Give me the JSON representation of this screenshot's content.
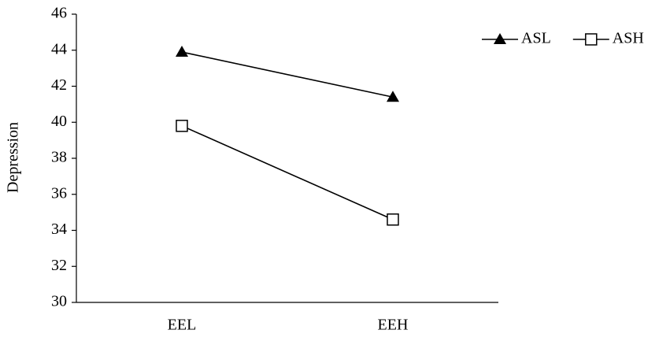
{
  "chart_data": {
    "type": "line",
    "ylabel": "Depression",
    "categories": [
      "EEL",
      "EEH"
    ],
    "series": [
      {
        "name": "ASL",
        "color": "#000000",
        "marker": "triangle",
        "values": [
          43.9,
          41.4
        ]
      },
      {
        "name": "ASH",
        "color": "#000000",
        "marker": "square",
        "values": [
          39.8,
          34.6
        ]
      }
    ],
    "ylim": [
      30,
      46
    ],
    "yticks": [
      30,
      32,
      34,
      36,
      38,
      40,
      42,
      44,
      46
    ],
    "grid": false,
    "legend": "top-right"
  }
}
